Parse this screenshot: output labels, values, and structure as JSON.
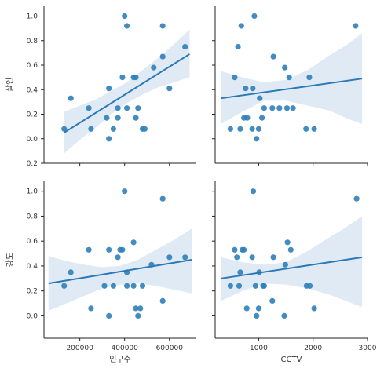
{
  "colors": {
    "point": "#2f7fb9",
    "line": "#2a78b5",
    "band": "#dbe8f4",
    "axis": "#222222",
    "text": "#333333"
  },
  "chart_data": [
    {
      "type": "scatter",
      "row": "살인",
      "col": "인구수",
      "ylabel": "살인",
      "xlabel": "",
      "xlim": [
        40000,
        720000
      ],
      "ylim": [
        -0.2,
        1.08
      ],
      "xticks": [],
      "yticks": [
        0.0,
        0.2,
        0.4,
        0.6,
        0.8,
        1.0
      ],
      "ytick_labels": [
        "0.0",
        "0.2",
        "0.4",
        "0.6",
        "0.8",
        "1.0"
      ],
      "extra_ytick_label": "0.2",
      "points": [
        {
          "x": 130000,
          "y": 0.08
        },
        {
          "x": 160000,
          "y": 0.33
        },
        {
          "x": 240000,
          "y": 0.25
        },
        {
          "x": 250000,
          "y": 0.08
        },
        {
          "x": 320000,
          "y": 0.17
        },
        {
          "x": 330000,
          "y": 0.0
        },
        {
          "x": 330000,
          "y": 0.41
        },
        {
          "x": 350000,
          "y": 0.08
        },
        {
          "x": 370000,
          "y": 0.25
        },
        {
          "x": 370000,
          "y": 0.17
        },
        {
          "x": 390000,
          "y": 0.5
        },
        {
          "x": 400000,
          "y": 1.0
        },
        {
          "x": 410000,
          "y": 0.25
        },
        {
          "x": 410000,
          "y": 0.92
        },
        {
          "x": 440000,
          "y": 0.5
        },
        {
          "x": 450000,
          "y": 0.5
        },
        {
          "x": 450000,
          "y": 0.17
        },
        {
          "x": 460000,
          "y": 0.25
        },
        {
          "x": 480000,
          "y": 0.08
        },
        {
          "x": 490000,
          "y": 0.08
        },
        {
          "x": 530000,
          "y": 0.58
        },
        {
          "x": 570000,
          "y": 0.67
        },
        {
          "x": 570000,
          "y": 0.92
        },
        {
          "x": 600000,
          "y": 0.41
        },
        {
          "x": 670000,
          "y": 0.75
        }
      ],
      "fit": {
        "x": [
          130000,
          690000
        ],
        "y": [
          0.05,
          0.69
        ]
      },
      "band": {
        "x": [
          130000,
          200000,
          270000,
          340000,
          410000,
          480000,
          550000,
          620000,
          690000
        ],
        "upper": [
          0.22,
          0.27,
          0.32,
          0.39,
          0.46,
          0.56,
          0.66,
          0.77,
          0.89
        ],
        "lower": [
          -0.12,
          -0.01,
          0.09,
          0.2,
          0.29,
          0.36,
          0.42,
          0.46,
          0.5
        ]
      }
    },
    {
      "type": "scatter",
      "row": "살인",
      "col": "CCTV",
      "ylabel": "",
      "xlabel": "",
      "xlim": [
        200,
        3000
      ],
      "ylim": [
        -0.2,
        1.08
      ],
      "xticks": [],
      "yticks": [],
      "points": [
        {
          "x": 480,
          "y": 0.08
        },
        {
          "x": 560,
          "y": 0.5
        },
        {
          "x": 620,
          "y": 0.75
        },
        {
          "x": 660,
          "y": 0.08
        },
        {
          "x": 680,
          "y": 0.92
        },
        {
          "x": 730,
          "y": 0.17
        },
        {
          "x": 760,
          "y": 0.41
        },
        {
          "x": 790,
          "y": 0.17
        },
        {
          "x": 880,
          "y": 0.08
        },
        {
          "x": 890,
          "y": 0.41
        },
        {
          "x": 920,
          "y": 1.0
        },
        {
          "x": 960,
          "y": 0.0
        },
        {
          "x": 1000,
          "y": 0.08
        },
        {
          "x": 1020,
          "y": 0.33
        },
        {
          "x": 1060,
          "y": 0.17
        },
        {
          "x": 1100,
          "y": 0.25
        },
        {
          "x": 1250,
          "y": 0.25
        },
        {
          "x": 1270,
          "y": 0.67
        },
        {
          "x": 1380,
          "y": 0.25
        },
        {
          "x": 1480,
          "y": 0.58
        },
        {
          "x": 1520,
          "y": 0.25
        },
        {
          "x": 1560,
          "y": 0.5
        },
        {
          "x": 1630,
          "y": 0.25
        },
        {
          "x": 1870,
          "y": 0.08
        },
        {
          "x": 1930,
          "y": 0.5
        },
        {
          "x": 2020,
          "y": 0.08
        },
        {
          "x": 2780,
          "y": 0.92
        }
      ],
      "fit": {
        "x": [
          310,
          2900
        ],
        "y": [
          0.33,
          0.49
        ]
      },
      "band": {
        "x": [
          310,
          700,
          1100,
          1500,
          1900,
          2300,
          2600,
          2900
        ],
        "upper": [
          0.55,
          0.5,
          0.46,
          0.48,
          0.56,
          0.68,
          0.76,
          0.86
        ],
        "lower": [
          0.12,
          0.22,
          0.31,
          0.31,
          0.27,
          0.23,
          0.17,
          0.12
        ]
      }
    },
    {
      "type": "scatter",
      "row": "강도",
      "col": "인구수",
      "ylabel": "강도",
      "xlabel": "인구수",
      "xlim": [
        40000,
        720000
      ],
      "ylim": [
        -0.18,
        1.08
      ],
      "xticks": [
        200000,
        400000,
        600000
      ],
      "xtick_labels": [
        "200000",
        "400000",
        "600000"
      ],
      "yticks": [
        0.0,
        0.2,
        0.4,
        0.6,
        0.8,
        1.0
      ],
      "ytick_labels": [
        "0.0",
        "0.2",
        "0.4",
        "0.6",
        "0.8",
        "1.0"
      ],
      "points": [
        {
          "x": 130000,
          "y": 0.24
        },
        {
          "x": 160000,
          "y": 0.35
        },
        {
          "x": 240000,
          "y": 0.53
        },
        {
          "x": 250000,
          "y": 0.06
        },
        {
          "x": 310000,
          "y": 0.24
        },
        {
          "x": 330000,
          "y": 0.0
        },
        {
          "x": 330000,
          "y": 0.53
        },
        {
          "x": 350000,
          "y": 0.24
        },
        {
          "x": 370000,
          "y": 0.47
        },
        {
          "x": 380000,
          "y": 0.53
        },
        {
          "x": 390000,
          "y": 0.53
        },
        {
          "x": 400000,
          "y": 1.0
        },
        {
          "x": 410000,
          "y": 0.35
        },
        {
          "x": 410000,
          "y": 0.24
        },
        {
          "x": 440000,
          "y": 0.59
        },
        {
          "x": 440000,
          "y": 0.24
        },
        {
          "x": 450000,
          "y": 0.06
        },
        {
          "x": 460000,
          "y": 0.0
        },
        {
          "x": 470000,
          "y": 0.06
        },
        {
          "x": 480000,
          "y": 0.24
        },
        {
          "x": 520000,
          "y": 0.41
        },
        {
          "x": 570000,
          "y": 0.12
        },
        {
          "x": 570000,
          "y": 0.94
        },
        {
          "x": 600000,
          "y": 0.47
        },
        {
          "x": 670000,
          "y": 0.47
        }
      ],
      "fit": {
        "x": [
          60000,
          700000
        ],
        "y": [
          0.26,
          0.45
        ]
      },
      "band": {
        "x": [
          60000,
          140000,
          220000,
          300000,
          380000,
          460000,
          540000,
          620000,
          700000
        ],
        "upper": [
          0.48,
          0.44,
          0.41,
          0.39,
          0.4,
          0.45,
          0.53,
          0.61,
          0.7
        ],
        "lower": [
          0.04,
          0.1,
          0.16,
          0.22,
          0.25,
          0.26,
          0.24,
          0.21,
          0.18
        ]
      }
    },
    {
      "type": "scatter",
      "row": "강도",
      "col": "CCTV",
      "ylabel": "",
      "xlabel": "CCTV",
      "xlim": [
        200,
        3000
      ],
      "ylim": [
        -0.18,
        1.08
      ],
      "xticks": [
        1000,
        2000,
        3000
      ],
      "xtick_labels": [
        "1000",
        "2000",
        "3000"
      ],
      "yticks": [],
      "points": [
        {
          "x": 480,
          "y": 0.24
        },
        {
          "x": 560,
          "y": 0.53
        },
        {
          "x": 600,
          "y": 0.47
        },
        {
          "x": 640,
          "y": 0.24
        },
        {
          "x": 660,
          "y": 0.35
        },
        {
          "x": 700,
          "y": 0.53
        },
        {
          "x": 730,
          "y": 0.53
        },
        {
          "x": 780,
          "y": 0.06
        },
        {
          "x": 880,
          "y": 0.47
        },
        {
          "x": 900,
          "y": 1.0
        },
        {
          "x": 940,
          "y": 0.24
        },
        {
          "x": 960,
          "y": 0.0
        },
        {
          "x": 1000,
          "y": 0.06
        },
        {
          "x": 1010,
          "y": 0.35
        },
        {
          "x": 1080,
          "y": 0.24
        },
        {
          "x": 1100,
          "y": 0.24
        },
        {
          "x": 1250,
          "y": 0.12
        },
        {
          "x": 1270,
          "y": 0.47
        },
        {
          "x": 1470,
          "y": 0.0
        },
        {
          "x": 1490,
          "y": 0.41
        },
        {
          "x": 1530,
          "y": 0.59
        },
        {
          "x": 1590,
          "y": 0.53
        },
        {
          "x": 1880,
          "y": 0.24
        },
        {
          "x": 1940,
          "y": 0.24
        },
        {
          "x": 2020,
          "y": 0.06
        },
        {
          "x": 2800,
          "y": 0.94
        }
      ],
      "fit": {
        "x": [
          310,
          2900
        ],
        "y": [
          0.3,
          0.47
        ]
      },
      "band": {
        "x": [
          310,
          700,
          1100,
          1500,
          1900,
          2300,
          2600,
          2900
        ],
        "upper": [
          0.47,
          0.43,
          0.41,
          0.43,
          0.52,
          0.63,
          0.71,
          0.8
        ],
        "lower": [
          0.12,
          0.2,
          0.26,
          0.25,
          0.22,
          0.17,
          0.12,
          0.07
        ]
      }
    }
  ]
}
